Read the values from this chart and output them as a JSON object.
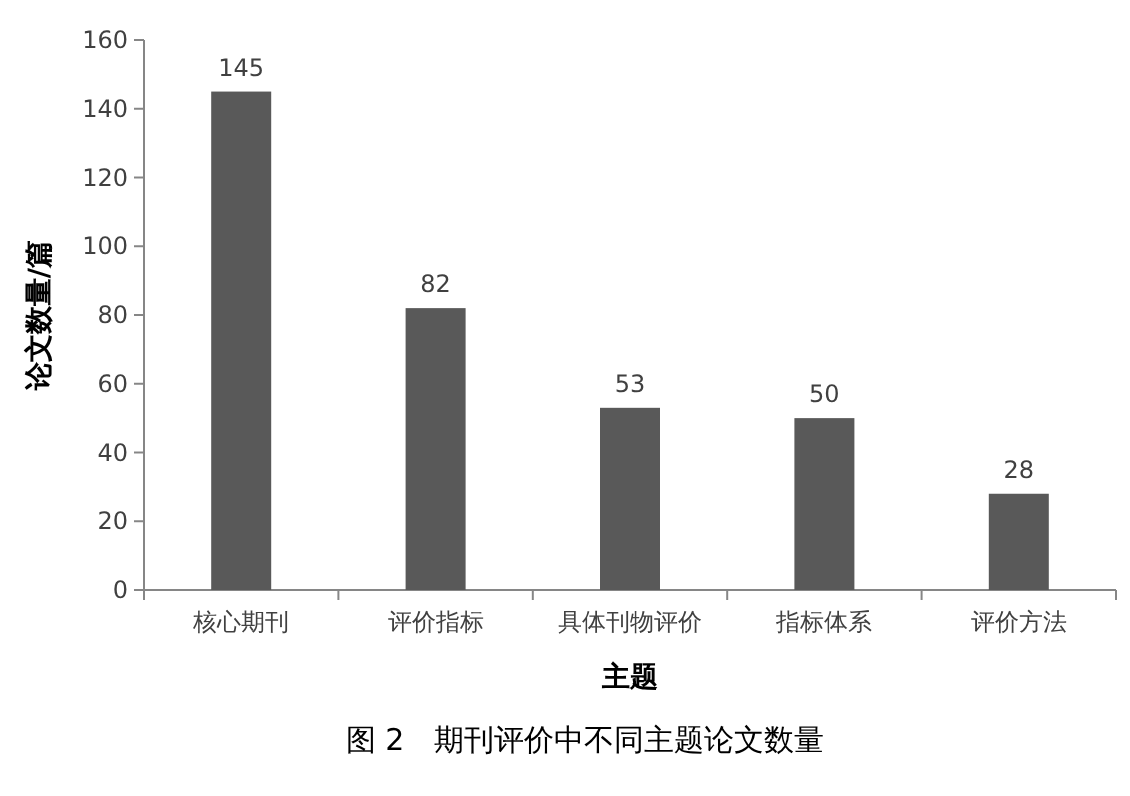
{
  "chart_data": {
    "type": "bar",
    "title": "图 2　期刊评价中不同主题论文数量",
    "xlabel": "主题",
    "ylabel": "论文数量/篇",
    "categories": [
      "核心期刊",
      "评价指标",
      "具体刊物评价",
      "指标体系",
      "评价方法"
    ],
    "values": [
      145,
      82,
      53,
      50,
      28
    ],
    "color": "#595959",
    "ylim": [
      0,
      160
    ],
    "yticks": [
      0,
      20,
      40,
      60,
      80,
      100,
      120,
      140,
      160
    ],
    "data_labels": true,
    "grid": false
  }
}
